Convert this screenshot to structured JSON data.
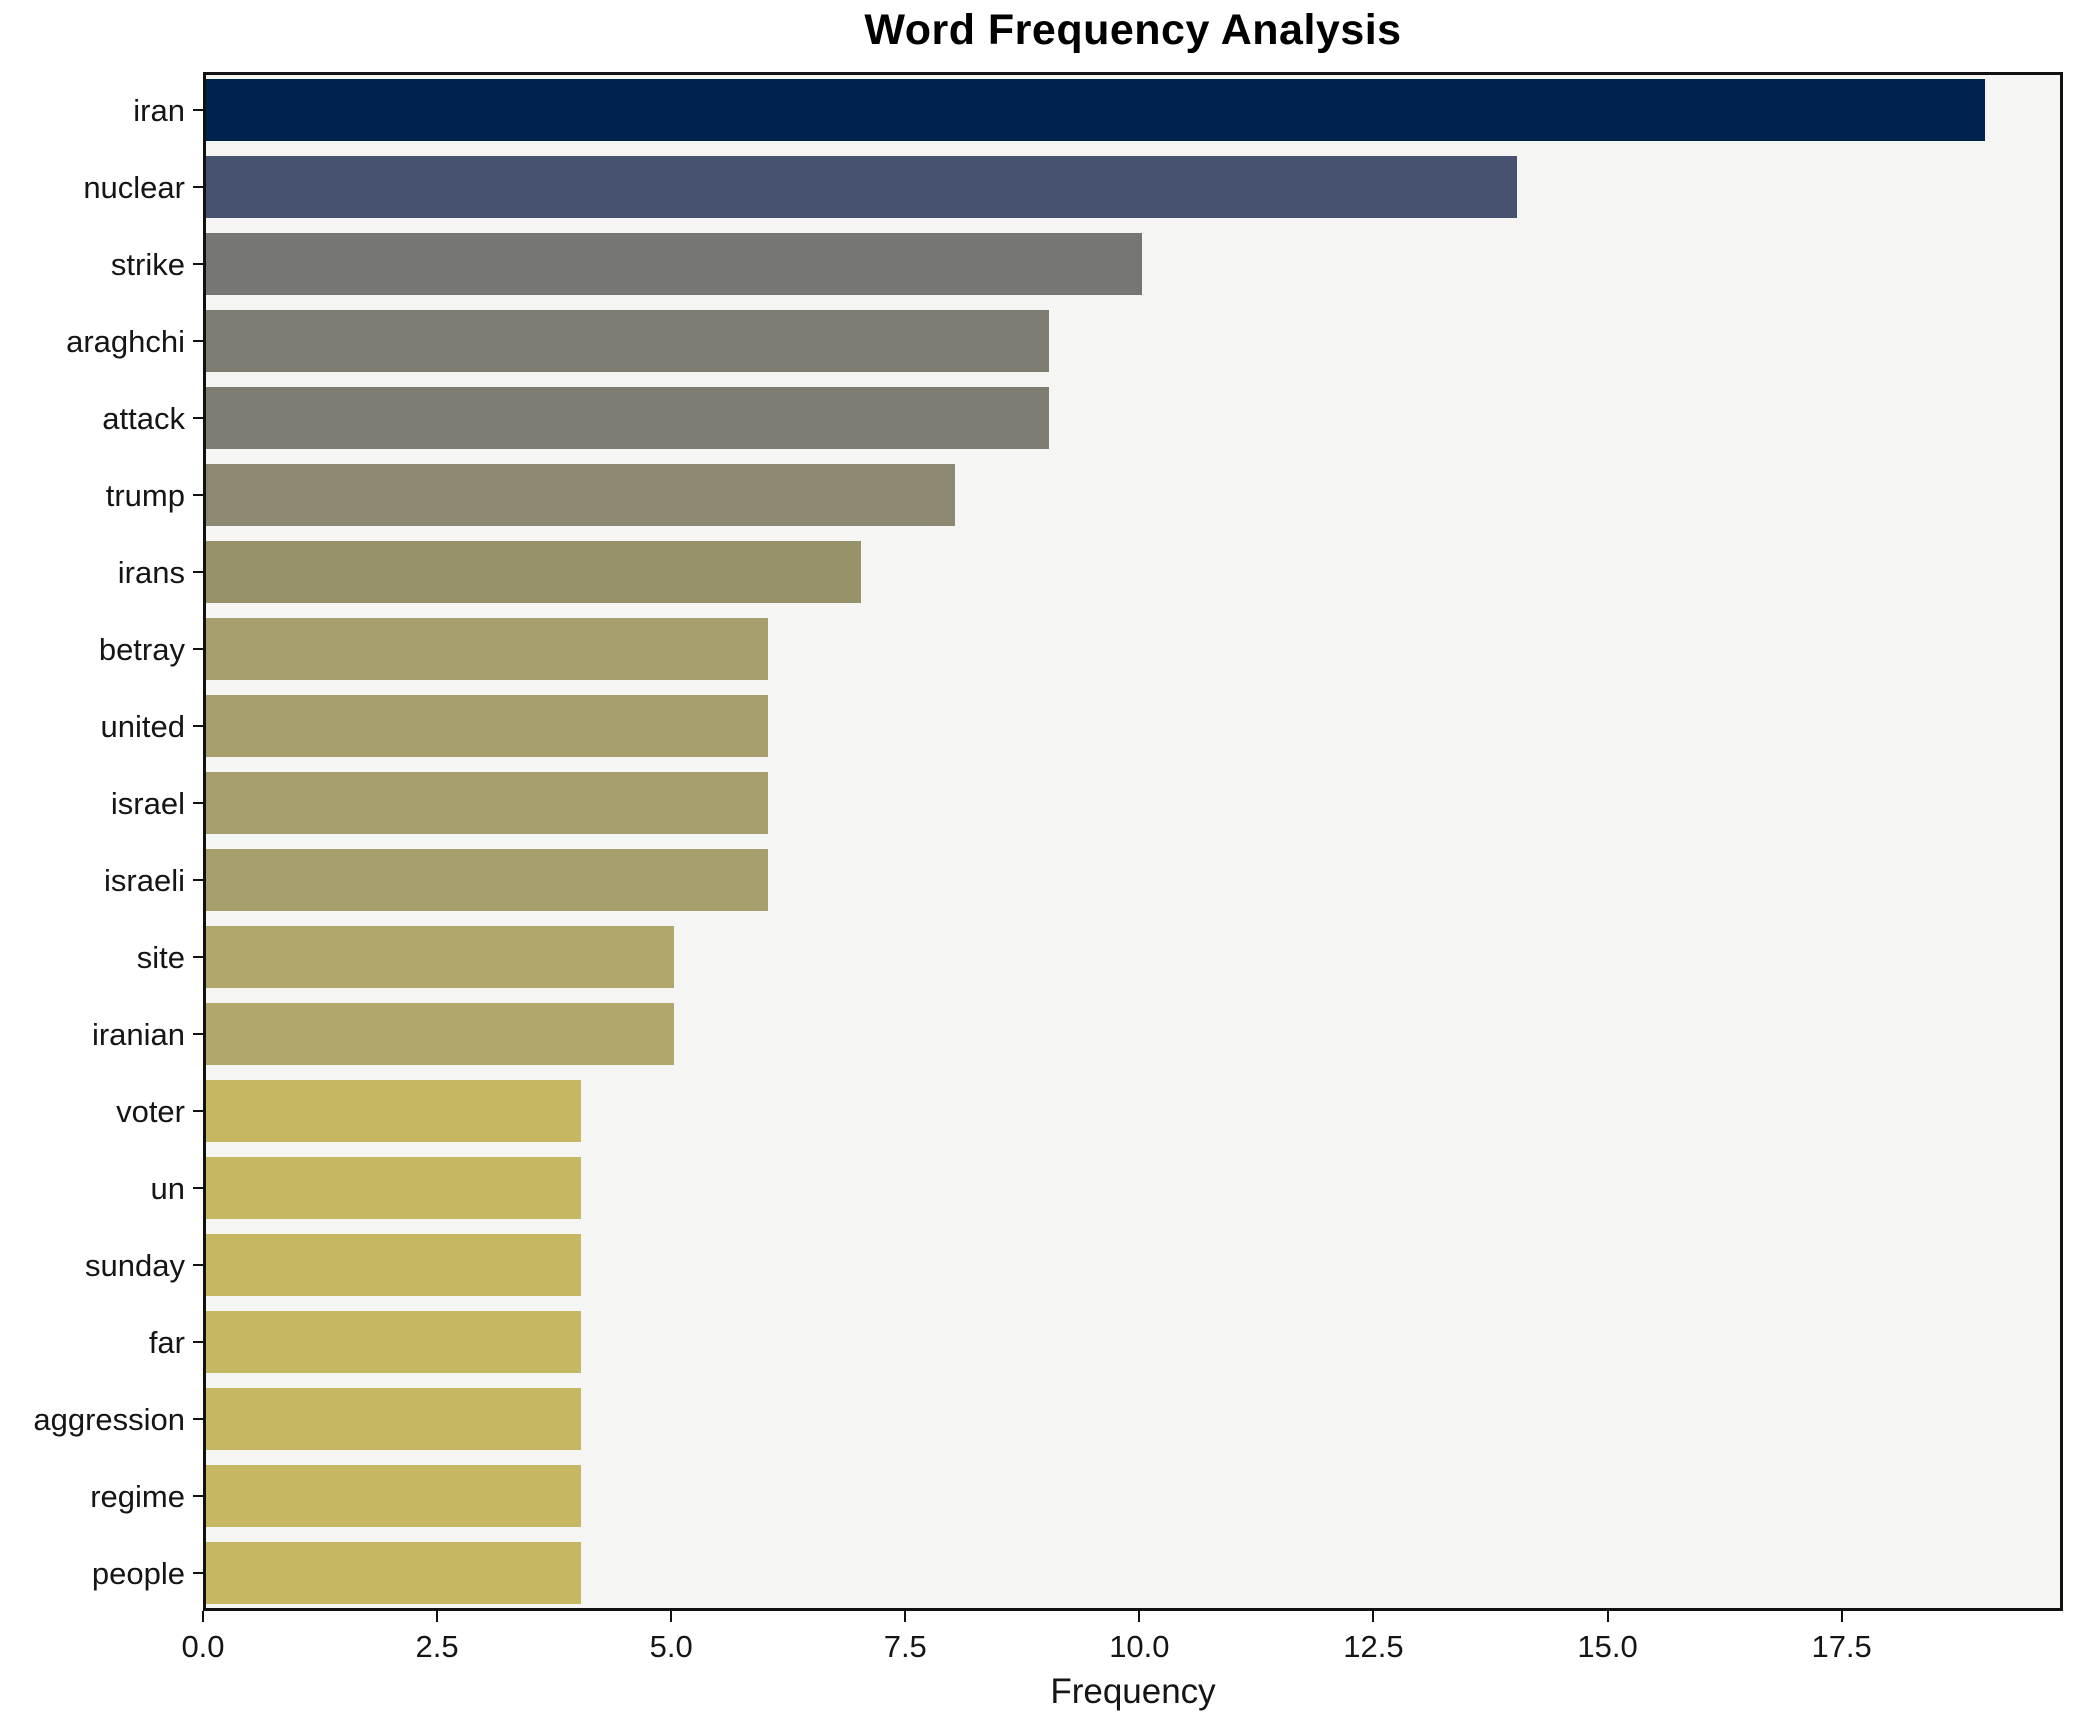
{
  "chart_data": {
    "type": "bar",
    "orientation": "horizontal",
    "title": "Word Frequency Analysis",
    "xlabel": "Frequency",
    "ylabel": "",
    "categories": [
      "iran",
      "nuclear",
      "strike",
      "araghchi",
      "attack",
      "trump",
      "irans",
      "betray",
      "united",
      "israel",
      "israeli",
      "site",
      "iranian",
      "voter",
      "un",
      "sunday",
      "far",
      "aggression",
      "regime",
      "people"
    ],
    "values": [
      19,
      14,
      10,
      9,
      9,
      8,
      7,
      6,
      6,
      6,
      6,
      5,
      5,
      4,
      4,
      4,
      4,
      4,
      4,
      4
    ],
    "bar_colors": [
      "#00234e",
      "#46526f",
      "#767675",
      "#7f7d71",
      "#7f7d71",
      "#8c8872",
      "#98926b",
      "#a79e6e",
      "#a79e6e",
      "#a79e6e",
      "#a79e6e",
      "#b2a76a",
      "#b2a76a",
      "#c6b763",
      "#c6b763",
      "#c6b763",
      "#c6b763",
      "#c6b763",
      "#c6b763",
      "#c6b763"
    ],
    "xlim": [
      0,
      19.8
    ],
    "xticks": [
      0,
      2.5,
      5,
      7.5,
      10,
      12.5,
      15,
      17.5
    ],
    "xtick_labels": [
      "0.0",
      "2.5",
      "5.0",
      "7.5",
      "10.0",
      "12.5",
      "15.0",
      "17.5"
    ],
    "grid": false,
    "legend_position": "none",
    "plot_background": "#f5f5f3",
    "figure_background": "#ffffff",
    "spine_color": "#111111"
  }
}
